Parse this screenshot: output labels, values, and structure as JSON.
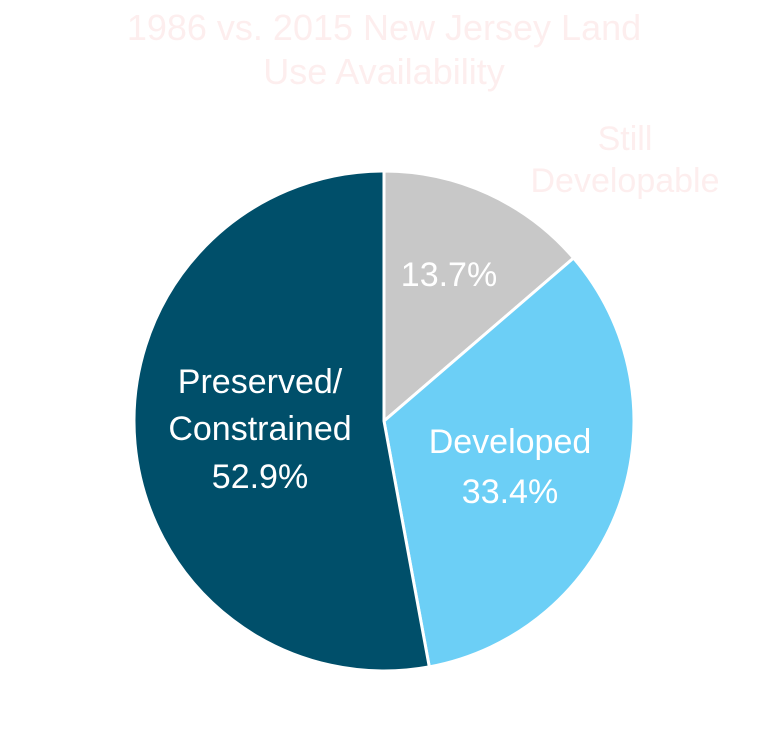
{
  "chart_data": {
    "type": "pie",
    "title_lines": [
      "1986 vs. 2015 New Jersey Land",
      "Use Availability"
    ],
    "slices": [
      {
        "id": "still-developable",
        "label_lines": [
          "Still",
          "Developable"
        ],
        "value": 13.7,
        "value_label": "13.7%",
        "color": "#C8C8C8"
      },
      {
        "id": "developed",
        "label_lines": [
          "Developed"
        ],
        "value": 33.4,
        "value_label": "33.4%",
        "color": "#6CCFF6"
      },
      {
        "id": "preserved-constrained",
        "label_lines": [
          "Preserved/",
          "Constrained"
        ],
        "value": 52.9,
        "value_label": "52.9%",
        "color": "#004F6A"
      }
    ],
    "start_angle_deg": 0,
    "direction": "clockwise"
  },
  "colors": {
    "faint_text": "#FDEEEE",
    "label_text": "#FFFFFF",
    "separator": "#FFFFFF"
  }
}
